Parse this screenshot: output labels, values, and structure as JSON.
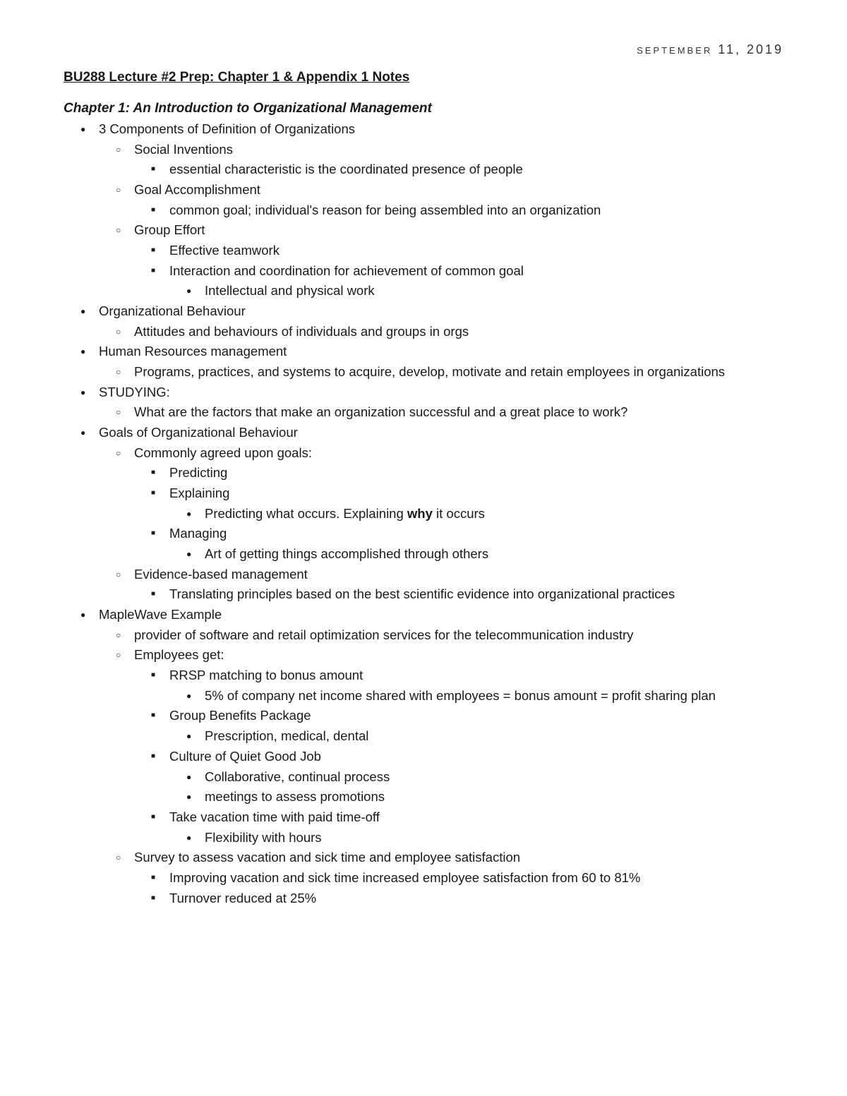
{
  "date": "September 11, 2019",
  "title": "BU288 Lecture #2 Prep: Chapter 1 & Appendix 1 Notes",
  "chapter": "Chapter 1: An Introduction to Organizational Management",
  "b": {
    "components": "3 Components of Definition of Organizations",
    "social": "Social Inventions",
    "social_sub": "essential characteristic is the coordinated presence of people",
    "goal": "Goal Accomplishment",
    "goal_sub": "common goal; individual's reason for being assembled into an organization",
    "group": "Group Effort",
    "group_a": "Effective teamwork",
    "group_b": "Interaction and coordination for achievement of common goal",
    "group_b1": "Intellectual and physical work",
    "ob": "Organizational Behaviour",
    "ob_sub": "Attitudes and behaviours of individuals and groups in orgs",
    "hrm": "Human Resources management",
    "hrm_sub": "Programs, practices, and systems to acquire, develop, motivate and retain employees in organizations",
    "study": "STUDYING:",
    "study_sub": "What are the factors that make an organization successful and a great place to work?",
    "goals": "Goals of Organizational Behaviour",
    "goals_common": "Commonly agreed upon goals:",
    "predict": "Predicting",
    "explain": "Explaining",
    "explain_sub_pre": "Predicting what occurs. Explaining ",
    "explain_sub_bold": "why",
    "explain_sub_post": " it occurs",
    "manage": "Managing",
    "manage_sub": "Art of getting things accomplished through others",
    "ebm": "Evidence-based management",
    "ebm_sub": "Translating principles based on the best scientific evidence into organizational practices",
    "mw": "MapleWave Example",
    "mw_a": "provider of software and retail optimization services for the telecommunication industry",
    "mw_b": "Employees get:",
    "rrsp": "RRSP matching to bonus amount",
    "rrsp_sub": "5% of company net income shared with employees = bonus amount = profit sharing plan",
    "gbp": "Group Benefits Package",
    "gbp_sub": "Prescription, medical, dental",
    "culture": "Culture of Quiet Good Job",
    "culture_a": "Collaborative, continual process",
    "culture_b": "meetings to assess promotions",
    "vac": "Take vacation time with paid time-off",
    "vac_sub": "Flexibility with hours",
    "survey": "Survey to assess vacation and sick time and employee satisfaction",
    "survey_a": "Improving vacation and sick time increased employee satisfaction from 60 to 81%",
    "survey_b": "Turnover reduced at 25%"
  }
}
